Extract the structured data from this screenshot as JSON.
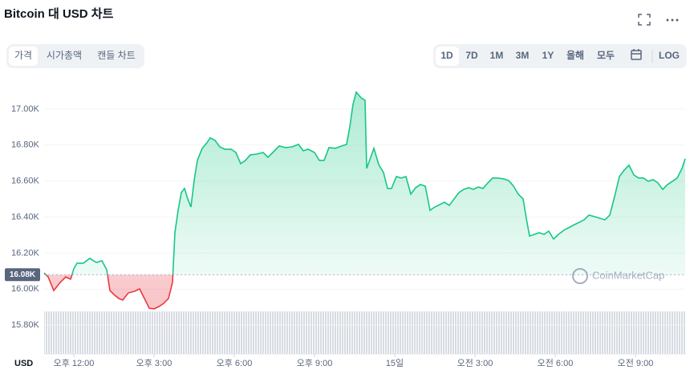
{
  "header": {
    "title": "Bitcoin 대 USD 차트"
  },
  "tabs": [
    "가격",
    "시가총액",
    "캔들 차트"
  ],
  "ranges": [
    "1D",
    "7D",
    "1M",
    "3M",
    "1Y",
    "올해",
    "모두"
  ],
  "log": "LOG",
  "watermark": "CoinMarketCap",
  "chart_data": {
    "type": "line",
    "currency": "USD",
    "color": "#16c784",
    "down_color": "#ea3943",
    "baseline": {
      "value": 16080,
      "label": "16.08K"
    },
    "xlim": [
      10.89,
      34.86
    ],
    "ylim": [
      15640,
      17160
    ],
    "xticks": [
      {
        "value": 12,
        "label": "오후 12:00"
      },
      {
        "value": 15,
        "label": "오후 3:00"
      },
      {
        "value": 18,
        "label": "오후 6:00"
      },
      {
        "value": 21,
        "label": "오후 9:00"
      },
      {
        "value": 24,
        "label": "15일"
      },
      {
        "value": 27,
        "label": "오전 3:00"
      },
      {
        "value": 30,
        "label": "오전 6:00"
      },
      {
        "value": 33,
        "label": "오전 9:00"
      }
    ],
    "yticks": [
      {
        "value": 15800,
        "label": "15.80K"
      },
      {
        "value": 16000,
        "label": "16.00K"
      },
      {
        "value": 16200,
        "label": "16.20K"
      },
      {
        "value": 16400,
        "label": "16.40K"
      },
      {
        "value": 16600,
        "label": "16.60K"
      },
      {
        "value": 16800,
        "label": "16.80K"
      },
      {
        "value": 17000,
        "label": "17.00K"
      }
    ],
    "x": [
      10.89,
      11.04,
      11.25,
      11.49,
      11.7,
      11.88,
      12,
      12.12,
      12.36,
      12.6,
      12.84,
      13.05,
      13.23,
      13.35,
      13.5,
      13.68,
      13.83,
      14.04,
      14.28,
      14.46,
      14.64,
      14.82,
      15,
      15.18,
      15.36,
      15.54,
      15.69,
      15.78,
      15.9,
      16.02,
      16.14,
      16.26,
      16.38,
      16.5,
      16.62,
      16.8,
      16.98,
      17.1,
      17.28,
      17.46,
      17.64,
      17.88,
      18.06,
      18.24,
      18.42,
      18.6,
      18.84,
      19.08,
      19.26,
      19.44,
      19.68,
      19.92,
      20.16,
      20.4,
      20.58,
      20.76,
      21,
      21.18,
      21.36,
      21.54,
      21.78,
      22.02,
      22.2,
      22.32,
      22.44,
      22.56,
      22.74,
      22.89,
      22.95,
      23.1,
      23.22,
      23.4,
      23.58,
      23.73,
      23.88,
      24.06,
      24.24,
      24.42,
      24.6,
      24.78,
      24.96,
      25.14,
      25.32,
      25.5,
      25.68,
      25.86,
      26.04,
      26.22,
      26.4,
      26.58,
      26.76,
      26.94,
      27.12,
      27.3,
      27.48,
      27.66,
      27.84,
      28.08,
      28.26,
      28.44,
      28.62,
      28.8,
      28.92,
      29.04,
      29.22,
      29.4,
      29.58,
      29.76,
      29.94,
      30.12,
      30.36,
      30.54,
      30.72,
      30.9,
      31.08,
      31.26,
      31.5,
      31.68,
      31.86,
      32.04,
      32.22,
      32.4,
      32.58,
      32.76,
      32.94,
      33.12,
      33.3,
      33.48,
      33.66,
      33.84,
      34.02,
      34.2,
      34.38,
      34.56,
      34.74,
      34.86
    ],
    "values": [
      16090,
      16068,
      15992,
      16037,
      16068,
      16055,
      16113,
      16144,
      16144,
      16171,
      16148,
      16157,
      16108,
      15992,
      15970,
      15948,
      15939,
      15979,
      15988,
      16001,
      15948,
      15894,
      15890,
      15903,
      15921,
      15948,
      16037,
      16313,
      16438,
      16536,
      16559,
      16501,
      16456,
      16603,
      16715,
      16782,
      16813,
      16840,
      16826,
      16790,
      16777,
      16777,
      16759,
      16697,
      16715,
      16746,
      16750,
      16759,
      16732,
      16759,
      16795,
      16786,
      16790,
      16804,
      16768,
      16777,
      16759,
      16715,
      16715,
      16786,
      16782,
      16795,
      16804,
      16902,
      17027,
      17094,
      17063,
      17049,
      16670,
      16732,
      16782,
      16692,
      16648,
      16559,
      16559,
      16625,
      16617,
      16625,
      16527,
      16563,
      16581,
      16572,
      16438,
      16456,
      16469,
      16483,
      16465,
      16501,
      16536,
      16554,
      16563,
      16554,
      16567,
      16559,
      16590,
      16617,
      16617,
      16612,
      16603,
      16572,
      16527,
      16501,
      16393,
      16295,
      16304,
      16313,
      16304,
      16322,
      16278,
      16304,
      16331,
      16344,
      16358,
      16371,
      16385,
      16411,
      16402,
      16393,
      16385,
      16411,
      16514,
      16625,
      16661,
      16688,
      16634,
      16617,
      16617,
      16599,
      16608,
      16590,
      16554,
      16581,
      16599,
      16617,
      16670,
      16724
    ]
  }
}
